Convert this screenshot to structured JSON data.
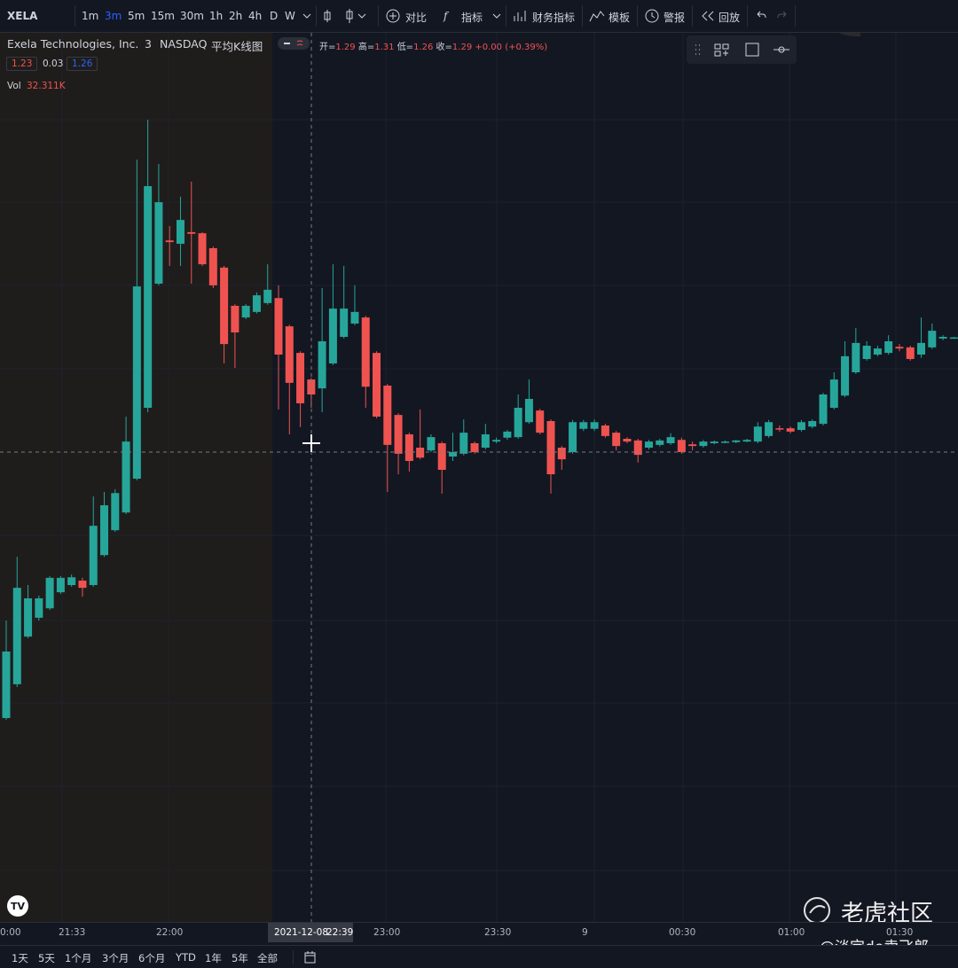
{
  "toolbar": {
    "symbol": "XELA",
    "intervals": [
      "1m",
      "3m",
      "5m",
      "15m",
      "30m",
      "1h",
      "2h",
      "4h",
      "D",
      "W"
    ],
    "buttons": [
      "对比",
      "指标",
      "财务指标",
      "模板",
      "警报",
      "回放"
    ]
  },
  "legend": {
    "name": "Exela Technologies, Inc.",
    "interval": "3",
    "exchange": "NASDAQ",
    "chart_style": "平均K线图",
    "ohlc": [
      {
        "label": "开=",
        "value": "1.29"
      },
      {
        "label": "高=",
        "value": "1.31"
      },
      {
        "label": "低=",
        "value": "1.26"
      },
      {
        "label": "收=",
        "value": "1.29"
      }
    ],
    "change": "+0.00 (+0.39%)",
    "indicator_values": [
      "1.23",
      "0.03",
      "1.26"
    ],
    "volume_label": "Vol",
    "volume": "32.311K"
  },
  "chart_data": {
    "type": "candlestick",
    "ylim": [
      0.336,
      1.936
    ],
    "up_color": "#26a69a",
    "down_color": "#ef5350",
    "open": [
      0.704,
      0.765,
      0.851,
      0.885,
      0.902,
      0.931,
      0.944,
      0.952,
      0.944,
      0.998,
      1.043,
      1.075,
      1.136,
      1.264,
      1.488,
      1.566,
      1.56,
      1.581,
      1.579,
      1.552,
      1.517,
      1.448,
      1.427,
      1.437,
      1.453,
      1.462,
      1.411,
      1.363,
      1.315,
      1.299,
      1.344,
      1.392,
      1.416,
      1.427,
      1.363,
      1.304,
      1.251,
      1.216,
      1.192,
      1.187,
      1.2,
      1.176,
      1.181,
      1.2,
      1.192,
      1.203,
      1.21,
      1.211,
      1.238,
      1.259,
      1.24,
      1.192,
      1.184,
      1.226,
      1.226,
      1.232,
      1.219,
      1.208,
      1.205,
      1.192,
      1.197,
      1.2,
      1.206,
      1.198,
      1.195,
      1.2,
      1.202,
      1.202,
      1.203,
      1.203,
      1.213,
      1.227,
      1.227,
      1.224,
      1.23,
      1.235,
      1.264,
      1.286,
      1.328,
      1.352,
      1.36,
      1.363,
      1.374,
      1.373,
      1.36,
      1.373,
      1.389,
      1.39
    ],
    "high": [
      0.88,
      0.995,
      0.944,
      0.925,
      0.96,
      0.96,
      0.963,
      0.957,
      1.104,
      1.112,
      1.117,
      1.248,
      1.712,
      1.784,
      1.704,
      1.592,
      1.645,
      1.672,
      1.581,
      1.555,
      1.52,
      1.451,
      1.451,
      1.472,
      1.523,
      1.485,
      1.414,
      1.366,
      1.318,
      1.48,
      1.523,
      1.52,
      1.485,
      1.43,
      1.366,
      1.307,
      1.254,
      1.219,
      1.261,
      1.216,
      1.203,
      1.219,
      1.243,
      1.203,
      1.235,
      1.21,
      1.224,
      1.288,
      1.315,
      1.262,
      1.243,
      1.195,
      1.242,
      1.242,
      1.243,
      1.235,
      1.222,
      1.211,
      1.208,
      1.206,
      1.208,
      1.218,
      1.21,
      1.203,
      1.206,
      1.205,
      1.205,
      1.206,
      1.208,
      1.238,
      1.242,
      1.232,
      1.23,
      1.242,
      1.243,
      1.291,
      1.328,
      1.384,
      1.408,
      1.384,
      1.376,
      1.395,
      1.379,
      1.376,
      1.427,
      1.416,
      1.395,
      1.392
    ],
    "low": [
      0.701,
      0.76,
      0.848,
      0.88,
      0.899,
      0.928,
      0.941,
      0.923,
      0.941,
      0.995,
      1.04,
      1.072,
      1.133,
      1.256,
      1.485,
      1.52,
      1.52,
      1.488,
      1.52,
      1.48,
      1.344,
      1.336,
      1.424,
      1.434,
      1.45,
      1.261,
      1.216,
      1.229,
      1.264,
      1.256,
      1.341,
      1.389,
      1.413,
      1.264,
      1.245,
      1.112,
      1.144,
      1.149,
      1.171,
      1.184,
      1.109,
      1.168,
      1.178,
      1.181,
      1.189,
      1.2,
      1.206,
      1.208,
      1.235,
      1.216,
      1.109,
      1.152,
      1.181,
      1.222,
      1.222,
      1.21,
      1.187,
      1.2,
      1.165,
      1.189,
      1.194,
      1.197,
      1.181,
      1.187,
      1.192,
      1.198,
      1.2,
      1.2,
      1.202,
      1.2,
      1.21,
      1.221,
      1.218,
      1.221,
      1.227,
      1.232,
      1.261,
      1.283,
      1.325,
      1.349,
      1.357,
      1.36,
      1.366,
      1.349,
      1.354,
      1.37,
      1.386,
      1.389
    ],
    "close": [
      0.824,
      0.939,
      0.92,
      0.92,
      0.957,
      0.957,
      0.958,
      0.939,
      1.051,
      1.088,
      1.11,
      1.203,
      1.483,
      1.664,
      1.635,
      1.563,
      1.603,
      1.578,
      1.523,
      1.485,
      1.379,
      1.4,
      1.448,
      1.467,
      1.477,
      1.36,
      1.309,
      1.272,
      1.288,
      1.384,
      1.443,
      1.443,
      1.437,
      1.302,
      1.248,
      1.197,
      1.181,
      1.168,
      1.174,
      1.211,
      1.152,
      1.184,
      1.219,
      1.184,
      1.216,
      1.206,
      1.221,
      1.264,
      1.28,
      1.219,
      1.144,
      1.171,
      1.238,
      1.238,
      1.238,
      1.213,
      1.195,
      1.203,
      1.179,
      1.203,
      1.205,
      1.211,
      1.184,
      1.195,
      1.203,
      1.203,
      1.203,
      1.205,
      1.206,
      1.23,
      1.238,
      1.226,
      1.221,
      1.238,
      1.24,
      1.288,
      1.315,
      1.357,
      1.381,
      1.376,
      1.371,
      1.384,
      1.371,
      1.352,
      1.381,
      1.403,
      1.392,
      1.391
    ]
  },
  "time_axis": {
    "labels": [
      "0:00",
      "21:33",
      "22:00",
      "23:00",
      "23:30",
      "9",
      "00:30",
      "01:00",
      "01:30"
    ],
    "crosshair_date": "2021-12-08",
    "crosshair_time": "22:39"
  },
  "range_bar": [
    "1天",
    "5天",
    "1个月",
    "3个月",
    "6个月",
    "YTD",
    "1年",
    "5年",
    "全部"
  ],
  "watermark": {
    "brand": "老虎社区",
    "user": "@淡定de卖飞郎"
  }
}
